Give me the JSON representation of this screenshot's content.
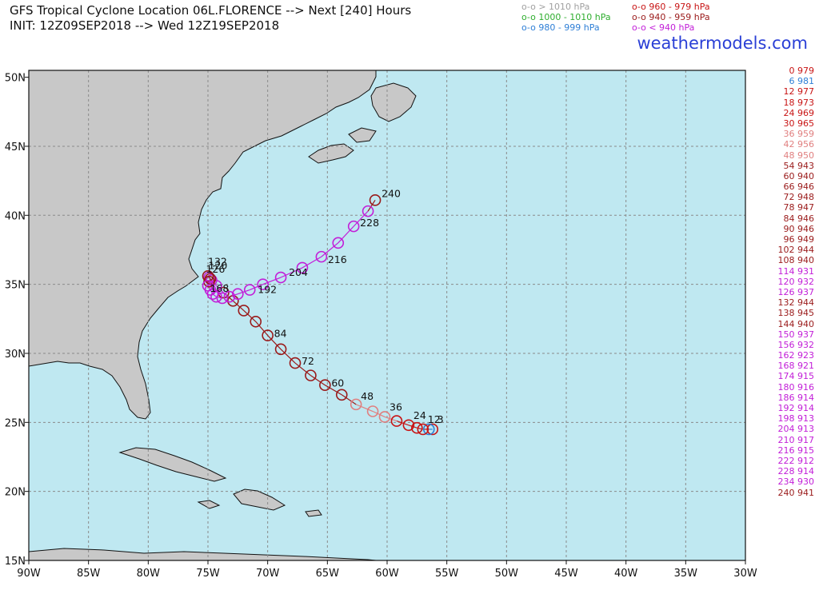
{
  "header": {
    "title_line1": "GFS Tropical Cyclone Location 06L.FLORENCE --> Next [240] Hours",
    "title_line2": "INIT: 12Z09SEP2018 --> Wed 12Z19SEP2018"
  },
  "legend": [
    {
      "text": "o-o > 1010 hPa",
      "color": "#a0a0a0"
    },
    {
      "text": "o-o 960 - 979 hPa",
      "color": "#c81414"
    },
    {
      "text": "o-o 1000 - 1010 hPa",
      "color": "#2fae2f"
    },
    {
      "text": "o-o 940 - 959 hPa",
      "color": "#9a1a1a"
    },
    {
      "text": "o-o 980 - 999 hPa",
      "color": "#2e7fd6"
    },
    {
      "text": "o-o < 940 hPa",
      "color": "#c21ed8"
    }
  ],
  "brand": "weathermodels.com",
  "pressure_list": [
    {
      "text": "0 979",
      "color": "#c81414"
    },
    {
      "text": "6 981",
      "color": "#2e7fd6"
    },
    {
      "text": "12 977",
      "color": "#c81414"
    },
    {
      "text": "18 973",
      "color": "#c81414"
    },
    {
      "text": "24 969",
      "color": "#c81414"
    },
    {
      "text": "30 965",
      "color": "#c81414"
    },
    {
      "text": "36 959",
      "color": "#e07f7f"
    },
    {
      "text": "42 956",
      "color": "#e07f7f"
    },
    {
      "text": "48 950",
      "color": "#e07f7f"
    },
    {
      "text": "54 943",
      "color": "#9a1a1a"
    },
    {
      "text": "60 940",
      "color": "#9a1a1a"
    },
    {
      "text": "66 946",
      "color": "#9a1a1a"
    },
    {
      "text": "72 948",
      "color": "#9a1a1a"
    },
    {
      "text": "78 947",
      "color": "#9a1a1a"
    },
    {
      "text": "84 946",
      "color": "#9a1a1a"
    },
    {
      "text": "90 946",
      "color": "#9a1a1a"
    },
    {
      "text": "96 949",
      "color": "#9a1a1a"
    },
    {
      "text": "102 944",
      "color": "#9a1a1a"
    },
    {
      "text": "108 940",
      "color": "#9a1a1a"
    },
    {
      "text": "114 931",
      "color": "#c21ed8"
    },
    {
      "text": "120 932",
      "color": "#c21ed8"
    },
    {
      "text": "126 937",
      "color": "#c21ed8"
    },
    {
      "text": "132 944",
      "color": "#9a1a1a"
    },
    {
      "text": "138 945",
      "color": "#9a1a1a"
    },
    {
      "text": "144 940",
      "color": "#9a1a1a"
    },
    {
      "text": "150 937",
      "color": "#c21ed8"
    },
    {
      "text": "156 932",
      "color": "#c21ed8"
    },
    {
      "text": "162 923",
      "color": "#c21ed8"
    },
    {
      "text": "168 921",
      "color": "#c21ed8"
    },
    {
      "text": "174 915",
      "color": "#c21ed8"
    },
    {
      "text": "180 916",
      "color": "#c21ed8"
    },
    {
      "text": "186 914",
      "color": "#c21ed8"
    },
    {
      "text": "192 914",
      "color": "#c21ed8"
    },
    {
      "text": "198 913",
      "color": "#c21ed8"
    },
    {
      "text": "204 913",
      "color": "#c21ed8"
    },
    {
      "text": "210 917",
      "color": "#c21ed8"
    },
    {
      "text": "216 915",
      "color": "#c21ed8"
    },
    {
      "text": "222 912",
      "color": "#c21ed8"
    },
    {
      "text": "228 914",
      "color": "#c21ed8"
    },
    {
      "text": "234 930",
      "color": "#c21ed8"
    },
    {
      "text": "240 941",
      "color": "#9a1a1a"
    }
  ],
  "map": {
    "lon_range": [
      -90,
      -30
    ],
    "lat_range": [
      15,
      50.5
    ],
    "x_ticks": [
      "90W",
      "85W",
      "80W",
      "75W",
      "70W",
      "65W",
      "60W",
      "55W",
      "50W",
      "45W",
      "40W",
      "35W",
      "30W"
    ],
    "y_ticks": [
      "50N",
      "45N",
      "40N",
      "35N",
      "30N",
      "25N",
      "20N",
      "15N"
    ],
    "ocean_color": "#bfe8f1",
    "land_color": "#c8c8c8"
  },
  "track": [
    {
      "h": 0,
      "lon": -56.2,
      "lat": 24.5,
      "p": 979
    },
    {
      "h": 6,
      "lon": -56.5,
      "lat": 24.5,
      "p": 981
    },
    {
      "h": 12,
      "lon": -57.0,
      "lat": 24.5,
      "p": 977
    },
    {
      "h": 18,
      "lon": -57.5,
      "lat": 24.6,
      "p": 973
    },
    {
      "h": 24,
      "lon": -58.2,
      "lat": 24.8,
      "p": 969
    },
    {
      "h": 30,
      "lon": -59.2,
      "lat": 25.1,
      "p": 965
    },
    {
      "h": 36,
      "lon": -60.2,
      "lat": 25.4,
      "p": 959
    },
    {
      "h": 42,
      "lon": -61.2,
      "lat": 25.8,
      "p": 956
    },
    {
      "h": 48,
      "lon": -62.6,
      "lat": 26.3,
      "p": 950
    },
    {
      "h": 54,
      "lon": -63.8,
      "lat": 27.0,
      "p": 943
    },
    {
      "h": 60,
      "lon": -65.2,
      "lat": 27.7,
      "p": 940
    },
    {
      "h": 66,
      "lon": -66.4,
      "lat": 28.4,
      "p": 946
    },
    {
      "h": 72,
      "lon": -67.7,
      "lat": 29.3,
      "p": 948
    },
    {
      "h": 78,
      "lon": -68.9,
      "lat": 30.3,
      "p": 947
    },
    {
      "h": 84,
      "lon": -70.0,
      "lat": 31.3,
      "p": 946
    },
    {
      "h": 90,
      "lon": -71.0,
      "lat": 32.3,
      "p": 946
    },
    {
      "h": 96,
      "lon": -72.0,
      "lat": 33.1,
      "p": 949
    },
    {
      "h": 102,
      "lon": -72.9,
      "lat": 33.8,
      "p": 944
    },
    {
      "h": 108,
      "lon": -73.7,
      "lat": 34.4,
      "p": 940
    },
    {
      "h": 114,
      "lon": -74.3,
      "lat": 34.9,
      "p": 931
    },
    {
      "h": 120,
      "lon": -74.7,
      "lat": 35.3,
      "p": 932
    },
    {
      "h": 126,
      "lon": -74.9,
      "lat": 35.5,
      "p": 937
    },
    {
      "h": 132,
      "lon": -75.0,
      "lat": 35.6,
      "p": 944
    },
    {
      "h": 138,
      "lon": -74.8,
      "lat": 35.4,
      "p": 945
    },
    {
      "h": 144,
      "lon": -74.9,
      "lat": 35.2,
      "p": 940
    },
    {
      "h": 150,
      "lon": -75.0,
      "lat": 34.9,
      "p": 937
    },
    {
      "h": 156,
      "lon": -74.8,
      "lat": 34.6,
      "p": 932
    },
    {
      "h": 162,
      "lon": -74.6,
      "lat": 34.3,
      "p": 923
    },
    {
      "h": 168,
      "lon": -74.3,
      "lat": 34.1,
      "p": 921
    },
    {
      "h": 174,
      "lon": -73.8,
      "lat": 34.0,
      "p": 915
    },
    {
      "h": 180,
      "lon": -73.2,
      "lat": 34.1,
      "p": 916
    },
    {
      "h": 186,
      "lon": -72.5,
      "lat": 34.3,
      "p": 914
    },
    {
      "h": 192,
      "lon": -71.5,
      "lat": 34.6,
      "p": 914
    },
    {
      "h": 198,
      "lon": -70.4,
      "lat": 35.0,
      "p": 913
    },
    {
      "h": 204,
      "lon": -68.9,
      "lat": 35.5,
      "p": 913
    },
    {
      "h": 210,
      "lon": -67.1,
      "lat": 36.2,
      "p": 917
    },
    {
      "h": 216,
      "lon": -65.5,
      "lat": 37.0,
      "p": 915
    },
    {
      "h": 222,
      "lon": -64.1,
      "lat": 38.0,
      "p": 912
    },
    {
      "h": 228,
      "lon": -62.8,
      "lat": 39.2,
      "p": 914
    },
    {
      "h": 234,
      "lon": -61.6,
      "lat": 40.3,
      "p": 930
    },
    {
      "h": 240,
      "lon": -61.0,
      "lat": 41.1,
      "p": 941
    }
  ],
  "hour_labels": [
    "240",
    "228",
    "216",
    "204",
    "192",
    "168",
    "132",
    "120",
    "126",
    "84",
    "72",
    "60",
    "48",
    "36",
    "24",
    "12",
    "3"
  ]
}
